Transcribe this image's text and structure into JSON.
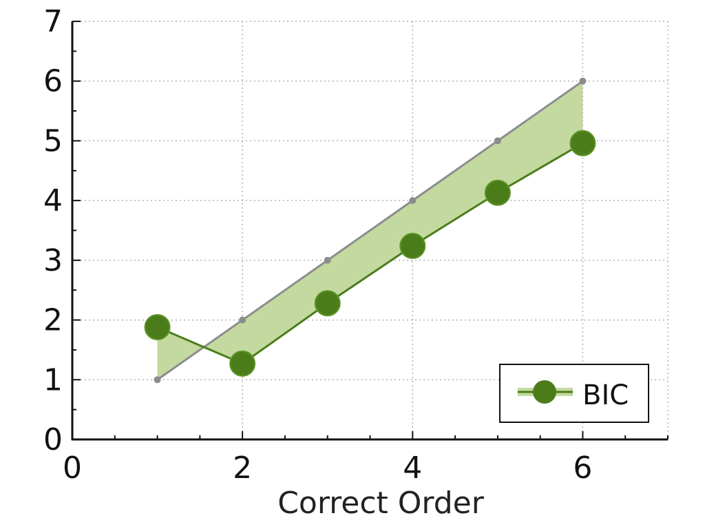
{
  "chart_data": {
    "type": "line",
    "title": "",
    "xlabel": "Correct Order",
    "ylabel": "",
    "xlim": [
      0,
      7
    ],
    "ylim": [
      0,
      7
    ],
    "x_ticks": [
      0,
      2,
      4,
      6
    ],
    "y_ticks": [
      0,
      1,
      2,
      3,
      4,
      5,
      6,
      7
    ],
    "grid": true,
    "legend_position": "bottom-right",
    "reference": {
      "x": [
        1,
        2,
        3,
        4,
        5,
        6
      ],
      "y": [
        1,
        2,
        3,
        4,
        5,
        6
      ],
      "color": "#8c8c8c"
    },
    "series": [
      {
        "name": "BIC",
        "x": [
          1,
          2,
          3,
          4,
          5,
          6
        ],
        "y": [
          1.88,
          1.27,
          2.28,
          3.24,
          4.13,
          4.96
        ],
        "color": "#4a7d1a",
        "fill_color": "#c3d9a0"
      }
    ]
  }
}
